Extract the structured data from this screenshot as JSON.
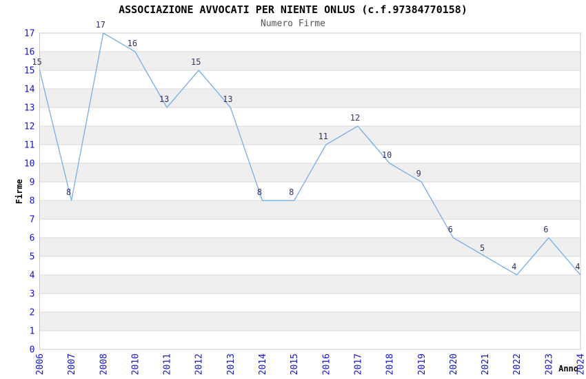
{
  "chart_data": {
    "type": "line",
    "title": "ASSOCIAZIONE AVVOCATI PER NIENTE ONLUS (c.f.97384770158)",
    "subtitle": "Numero Firme",
    "xlabel": "Anno",
    "ylabel": "Firme",
    "categories": [
      "2006",
      "2007",
      "2008",
      "2010",
      "2011",
      "2012",
      "2013",
      "2014",
      "2015",
      "2016",
      "2017",
      "2018",
      "2019",
      "2020",
      "2021",
      "2022",
      "2023",
      "2024"
    ],
    "values": [
      15,
      8,
      17,
      16,
      13,
      15,
      13,
      8,
      8,
      11,
      12,
      10,
      9,
      6,
      5,
      4,
      6,
      4
    ],
    "ylim": [
      0,
      17
    ],
    "y_tick_step": 1,
    "grid": true,
    "legend": "none",
    "data_labels": true,
    "band_pattern": "gray bands on odd-to-even unit intervals (1-2, 3-4, ... 15-16)",
    "colors": {
      "line": "#7fb2e6",
      "data_label": "#333366",
      "tick_label": "#1414cc",
      "band": "#efefef",
      "gridline": "#d9d9d9",
      "border": "#c8c8c8",
      "title": "#000000",
      "subtitle": "#555555",
      "axis_title": "#000000",
      "background": "#ffffff"
    }
  }
}
